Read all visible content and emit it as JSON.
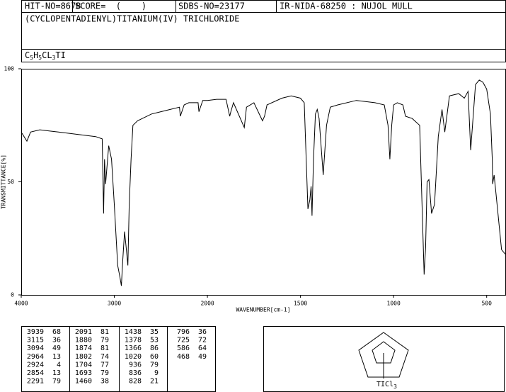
{
  "header": {
    "hit_no": "HIT-NO=8678",
    "score": "SCORE=  (    )",
    "sdbs_no": "SDBS-NO=23177",
    "method": "IR-NIDA-68250 : NUJOL MULL",
    "compound": "(CYCLOPENTADIENYL)TITANIUM(IV) TRICHLORIDE",
    "formula_parts": [
      "C",
      "5",
      "H",
      "5",
      "CL",
      "3",
      "TI"
    ]
  },
  "chart_data": {
    "type": "line",
    "xlabel": "WAVENUMBER[cm-1]",
    "ylabel": "TRANSMITTANCE[%]",
    "xlim": [
      4000,
      400
    ],
    "x_break": 2000,
    "xticks": [
      4000,
      3000,
      2000,
      1500,
      1000,
      500
    ],
    "ylim": [
      0,
      100
    ],
    "yticks": [
      0,
      50,
      100
    ],
    "x": [
      4000,
      3939,
      3900,
      3800,
      3700,
      3600,
      3400,
      3200,
      3130,
      3115,
      3105,
      3094,
      3060,
      3030,
      3000,
      2964,
      2940,
      2924,
      2910,
      2890,
      2870,
      2854,
      2840,
      2820,
      2800,
      2750,
      2700,
      2600,
      2500,
      2400,
      2300,
      2291,
      2250,
      2200,
      2100,
      2091,
      2050,
      2000,
      1950,
      1900,
      1880,
      1874,
      1860,
      1802,
      1790,
      1750,
      1704,
      1693,
      1680,
      1600,
      1550,
      1500,
      1480,
      1460,
      1450,
      1443,
      1438,
      1430,
      1420,
      1410,
      1400,
      1378,
      1360,
      1340,
      1300,
      1200,
      1100,
      1050,
      1030,
      1020,
      1010,
      1000,
      980,
      950,
      936,
      900,
      860,
      836,
      828,
      820,
      810,
      796,
      780,
      760,
      740,
      725,
      700,
      650,
      620,
      600,
      586,
      560,
      540,
      520,
      500,
      480,
      470,
      468,
      460,
      450,
      420,
      400
    ],
    "series": [
      {
        "name": "spectrum",
        "color": "#000000",
        "values": [
          72,
          68,
          72,
          73,
          72.5,
          72,
          71,
          70,
          69,
          36,
          60,
          49,
          66,
          60,
          40,
          13,
          8,
          4,
          15,
          28,
          20,
          13,
          40,
          60,
          75,
          77,
          78,
          80,
          81,
          82,
          83,
          79,
          84,
          85,
          85,
          81,
          86,
          86,
          86.5,
          86.5,
          79,
          81,
          85,
          74,
          83,
          85,
          77,
          79,
          84,
          87,
          88,
          87,
          85,
          38,
          42,
          48,
          35,
          60,
          80,
          82,
          78,
          53,
          75,
          83,
          84,
          86,
          85,
          84,
          75,
          60,
          75,
          84,
          85,
          84,
          79,
          78,
          75,
          9,
          21,
          50,
          51,
          36,
          40,
          70,
          82,
          72,
          88,
          89,
          87,
          90,
          64,
          93,
          95,
          94,
          91,
          80,
          60,
          49,
          53,
          45,
          20,
          18
        ]
      }
    ]
  },
  "peaks": [
    [
      [
        3939,
        68
      ],
      [
        3115,
        36
      ],
      [
        3094,
        49
      ],
      [
        2964,
        13
      ],
      [
        2924,
        4
      ],
      [
        2854,
        13
      ],
      [
        2291,
        79
      ]
    ],
    [
      [
        2091,
        81
      ],
      [
        1880,
        79
      ],
      [
        1874,
        81
      ],
      [
        1802,
        74
      ],
      [
        1704,
        77
      ],
      [
        1693,
        79
      ],
      [
        1460,
        38
      ]
    ],
    [
      [
        1438,
        35
      ],
      [
        1378,
        53
      ],
      [
        1366,
        86
      ],
      [
        1020,
        60
      ],
      [
        936,
        79
      ],
      [
        836,
        9
      ],
      [
        828,
        21
      ]
    ],
    [
      [
        796,
        36
      ],
      [
        725,
        72
      ],
      [
        586,
        64
      ],
      [
        468,
        49
      ]
    ]
  ],
  "structure": {
    "label_parts": [
      "TICl",
      "3"
    ]
  }
}
